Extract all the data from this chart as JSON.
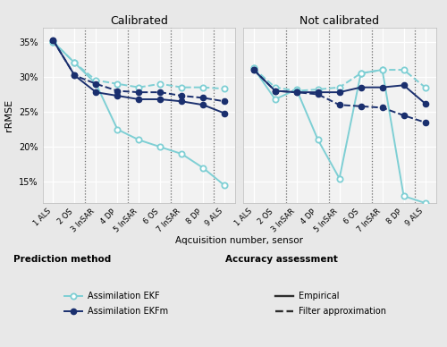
{
  "x_labels": [
    "1 ALS",
    "2 OS",
    "3 InSAR",
    "4 DP",
    "5 InSAR",
    "6 OS",
    "7 InSAR",
    "8 DP",
    "9 ALS"
  ],
  "dotted_vlines": [
    2.5,
    4.5,
    6.5,
    8.5
  ],
  "calibrated": {
    "title": "Calibrated",
    "ekf_empirical": [
      35.0,
      32.0,
      29.0,
      22.5,
      21.0,
      20.0,
      19.0,
      17.0,
      14.5
    ],
    "ekf_filter": [
      35.0,
      32.0,
      29.5,
      29.0,
      28.5,
      29.0,
      28.5,
      28.5,
      28.3
    ],
    "ekfm_empirical": [
      35.2,
      30.2,
      27.8,
      27.3,
      26.8,
      26.8,
      26.5,
      26.0,
      24.8
    ],
    "ekfm_filter": [
      35.2,
      30.2,
      29.0,
      28.0,
      27.8,
      27.8,
      27.3,
      27.0,
      26.5
    ]
  },
  "not_calibrated": {
    "title": "Not calibrated",
    "ekf_empirical": [
      31.2,
      26.8,
      28.2,
      21.0,
      15.5,
      30.5,
      31.0,
      13.0,
      12.0
    ],
    "ekf_filter": [
      31.2,
      28.5,
      28.0,
      28.2,
      28.5,
      30.5,
      31.0,
      31.0,
      28.5
    ],
    "ekfm_empirical": [
      31.0,
      28.0,
      27.8,
      27.8,
      27.8,
      28.5,
      28.5,
      28.8,
      26.2
    ],
    "ekfm_filter": [
      31.0,
      28.0,
      27.8,
      27.5,
      26.0,
      25.8,
      25.6,
      24.5,
      23.5
    ]
  },
  "color_ekf": "#7ecfd4",
  "color_ekfm": "#1a2f6e",
  "color_dark": "#2d2d2d",
  "ylim": [
    12,
    37
  ],
  "yticks": [
    15,
    20,
    25,
    30,
    35
  ],
  "bg_color": "#e8e8e8",
  "panel_bg": "#f2f2f2",
  "legend_pred_title": "Prediction method",
  "legend_acc_title": "Accuracy assessment",
  "legend_ekf_label": "Assimilation EKF",
  "legend_ekfm_label": "Assimilation EKFm",
  "legend_emp_label": "Empirical",
  "legend_filt_label": "Filter approximation",
  "xlabel": "Aqcuisition number, sensor",
  "ylabel": "rRMSE"
}
